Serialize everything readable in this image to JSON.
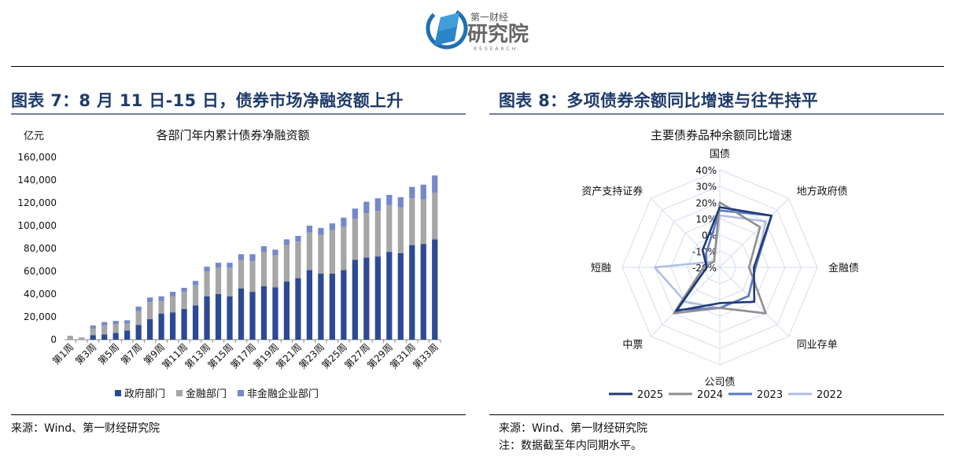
{
  "header": {
    "logo_top": "第一财经",
    "logo_main": "研究院",
    "logo_sub": "RESEARCH"
  },
  "left": {
    "figure_title": "图表 7：8 月 11 日-15 日，债券市场净融资额上升",
    "source": "来源：Wind、第一财经研究院"
  },
  "right": {
    "figure_title": "图表 8：多项债券余额同比增速与往年持平",
    "source": "来源：Wind、第一财经研究院",
    "note": "注：数据截至年内同期水平。"
  },
  "chart_data": [
    {
      "type": "bar",
      "stacked": true,
      "title": "各部门年内累计债券净融资额",
      "ylabel": "亿元",
      "ylim": [
        0,
        160000
      ],
      "yticks": [
        "0",
        "20,000",
        "40,000",
        "60,000",
        "80,000",
        "100,000",
        "120,000",
        "140,000",
        "160,000"
      ],
      "categories": [
        "第1周",
        "第2周",
        "第3周",
        "第4周",
        "第5周",
        "第6周",
        "第7周",
        "第8周",
        "第9周",
        "第10周",
        "第11周",
        "第12周",
        "第13周",
        "第14周",
        "第15周",
        "第16周",
        "第17周",
        "第18周",
        "第19周",
        "第20周",
        "第21周",
        "第22周",
        "第23周",
        "第24周",
        "第25周",
        "第26周",
        "第27周",
        "第28周",
        "第29周",
        "第30周",
        "第31周",
        "第32周",
        "第33周"
      ],
      "xtick_labels": [
        "第1周",
        "",
        "第3周",
        "",
        "第5周",
        "",
        "第7周",
        "",
        "第9周",
        "",
        "第11周",
        "",
        "第13周",
        "",
        "第15周",
        "",
        "第17周",
        "",
        "第19周",
        "",
        "第21周",
        "",
        "第23周",
        "",
        "第25周",
        "",
        "第27周",
        "",
        "第29周",
        "",
        "第31周",
        "",
        "第33周"
      ],
      "series": [
        {
          "name": "政府部门",
          "color": "#2c4a94",
          "values": [
            0,
            0,
            4000,
            4500,
            6000,
            8000,
            13000,
            18000,
            23000,
            24000,
            27000,
            30000,
            38000,
            40000,
            38000,
            45000,
            42000,
            47000,
            46000,
            51000,
            54000,
            61000,
            58000,
            58000,
            61000,
            70000,
            72000,
            73000,
            77000,
            76000,
            83000,
            84000,
            88000
          ]
        },
        {
          "name": "金融部门",
          "color": "#a6a6a6",
          "values": [
            3500,
            2000,
            6000,
            8000,
            7500,
            6000,
            12000,
            15000,
            11000,
            14000,
            15000,
            18000,
            22000,
            23000,
            25000,
            25000,
            27000,
            30000,
            28000,
            32000,
            32000,
            33000,
            34000,
            38000,
            38000,
            36000,
            39000,
            40000,
            41000,
            40000,
            41000,
            39000,
            41000
          ]
        },
        {
          "name": "非金融企业部门",
          "color": "#7488cb",
          "values": [
            0,
            0,
            2500,
            3000,
            3000,
            3000,
            4000,
            4000,
            4000,
            4000,
            3500,
            3500,
            4000,
            4500,
            4500,
            5000,
            6000,
            5000,
            5000,
            5000,
            5000,
            6000,
            6000,
            6000,
            8000,
            9000,
            10000,
            11000,
            9000,
            9000,
            10000,
            13000,
            15000
          ]
        }
      ]
    },
    {
      "type": "radar",
      "title": "主要债券品种余额同比增速",
      "axes": [
        "国债",
        "地方政府债",
        "金融债",
        "同业存单",
        "公司债",
        "中票",
        "短融",
        "资产支持证券"
      ],
      "rlim": [
        -20,
        40
      ],
      "rticks": [
        "40%",
        "30%",
        "20%",
        "10%",
        "0%",
        "-10%",
        "-20%"
      ],
      "legend_position": "bottom",
      "series": [
        {
          "name": "2025",
          "color": "#1f3a78",
          "values": [
            17,
            25,
            1,
            10,
            2,
            18,
            -12,
            -5
          ]
        },
        {
          "name": "2024",
          "color": "#8f8f8f",
          "values": [
            20,
            15,
            -2,
            20,
            5,
            20,
            -10,
            -15
          ]
        },
        {
          "name": "2023",
          "color": "#5a78c8",
          "values": [
            15,
            25,
            2,
            5,
            5,
            17,
            -12,
            -8
          ]
        },
        {
          "name": "2022",
          "color": "#b0bfe3",
          "values": [
            12,
            20,
            2,
            5,
            5,
            10,
            20,
            -15
          ]
        }
      ]
    }
  ]
}
